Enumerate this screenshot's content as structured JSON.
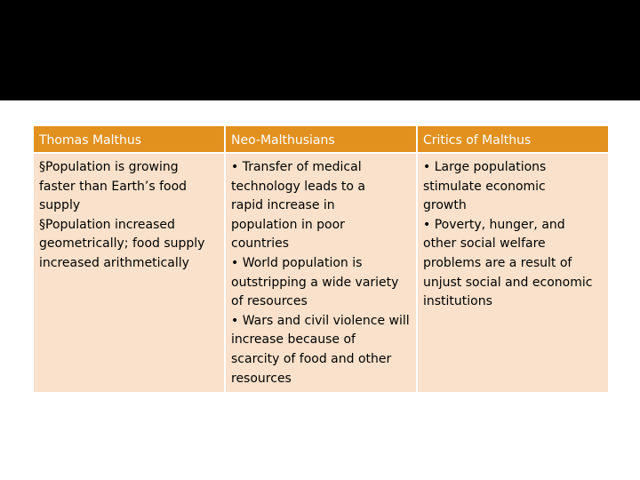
{
  "table": {
    "headers": [
      "Thomas Malthus",
      "Neo-Malthusians",
      "Critics of Malthus"
    ],
    "cells": [
      {
        "lines": [
          "§Population  is growing",
          "faster than Earth’s food",
          "supply",
          "§Population increased",
          "geometrically; food supply",
          "increased arithmetically"
        ]
      },
      {
        "lines": [
          "• Transfer of medical",
          "technology  leads to a",
          "rapid increase in",
          "population in poor",
          "countries",
          "• World population  is",
          "outstripping a wide variety",
          "of resources",
          "• Wars and civil violence will",
          "increase because of",
          "scarcity of food and other",
          "resources"
        ]
      },
      {
        "lines": [
          "• Large populations",
          "stimulate economic",
          "growth",
          "•  Poverty, hunger, and",
          "other social welfare",
          "problems are a result of",
          "unjust social and economic",
          "institutions"
        ]
      }
    ]
  },
  "colors": {
    "header_bg": "#e2901e",
    "cell_bg": "#f9e1cb",
    "top_band": "#000000"
  }
}
